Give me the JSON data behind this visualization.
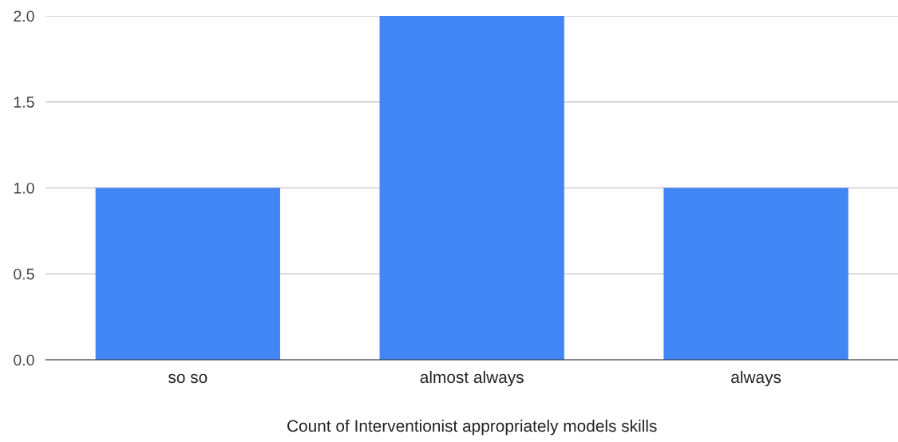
{
  "chart_data": {
    "type": "bar",
    "xlabel": "Count of Interventionist appropriately models skills",
    "categories": [
      "so so",
      "almost always",
      "always"
    ],
    "values": [
      1,
      2,
      1
    ],
    "color": "#4285f4",
    "ylim": [
      0,
      2
    ],
    "yticks": [
      {
        "value": 0,
        "label": "0.0"
      },
      {
        "value": 0.5,
        "label": "0.5"
      },
      {
        "value": 1,
        "label": "1.0"
      },
      {
        "value": 1.5,
        "label": "1.5"
      },
      {
        "value": 2,
        "label": "2.0"
      }
    ],
    "grid": "y",
    "legend": false
  }
}
